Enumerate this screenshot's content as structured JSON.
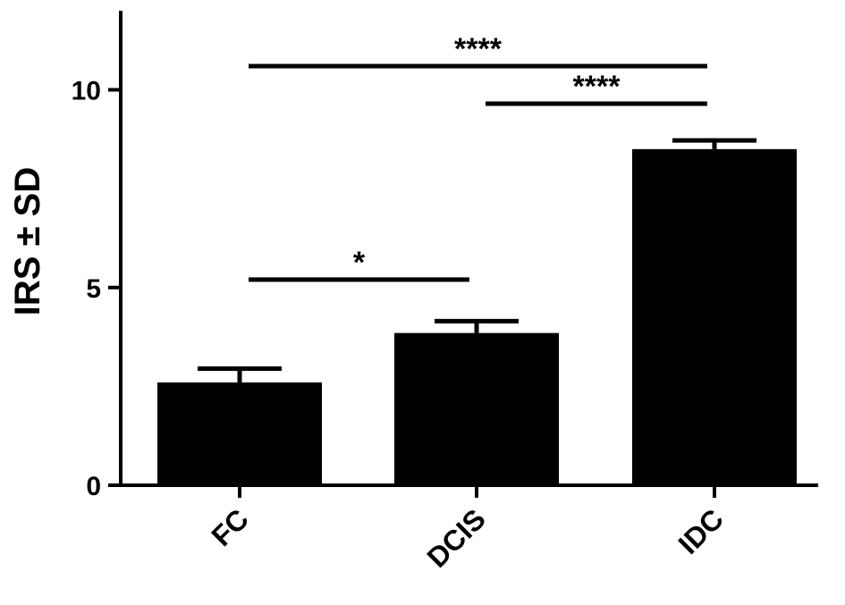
{
  "chart_data": {
    "type": "bar",
    "categories": [
      "FC",
      "DCIS",
      "IDC"
    ],
    "values": [
      2.6,
      3.85,
      8.5
    ],
    "errors": [
      0.35,
      0.3,
      0.22
    ],
    "ylabel": "IRS ± SD",
    "xlabel": "",
    "ylim": [
      0,
      12
    ],
    "yticks": [
      0,
      5,
      10
    ],
    "bar_color": "#000000",
    "grid": false,
    "significance": [
      {
        "from": 0,
        "to": 1,
        "y": 5.2,
        "label": "*"
      },
      {
        "from": 1,
        "to": 2,
        "y": 9.65,
        "label": "****"
      },
      {
        "from": 0,
        "to": 2,
        "y": 10.6,
        "label": "****"
      }
    ]
  }
}
